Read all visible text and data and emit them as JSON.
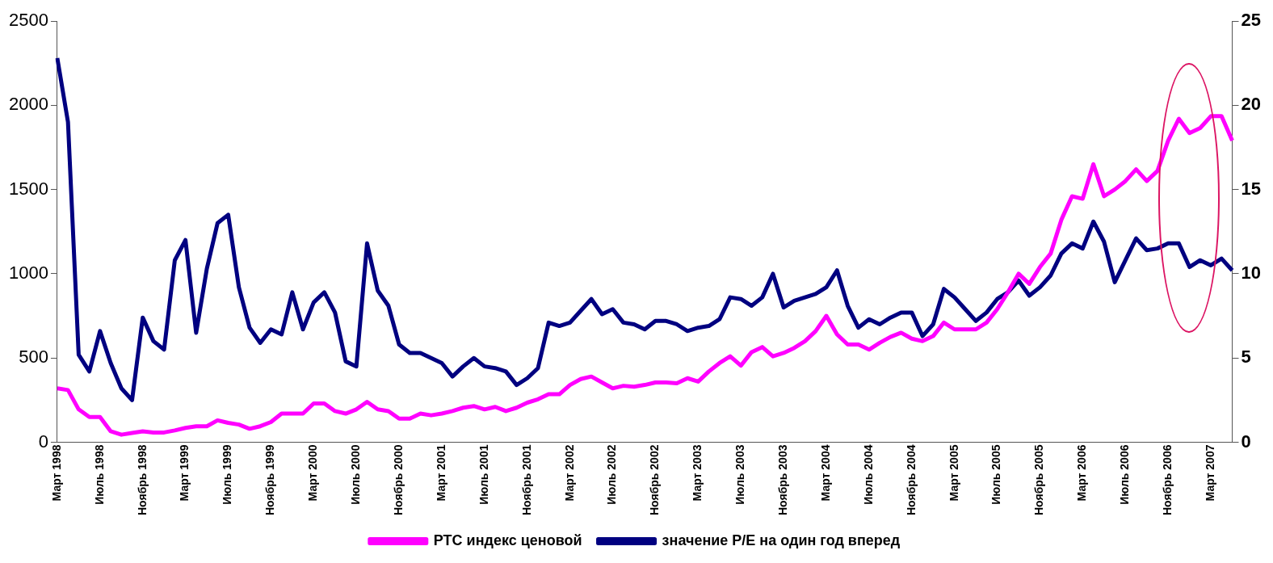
{
  "chart_data": {
    "type": "line",
    "categories": [
      "Март 1998",
      null,
      null,
      null,
      "Июль 1998",
      null,
      null,
      null,
      "Ноябрь 1998",
      null,
      null,
      null,
      "Март 1999",
      null,
      null,
      null,
      "Июль 1999",
      null,
      null,
      null,
      "Ноябрь 1999",
      null,
      null,
      null,
      "Март 2000",
      null,
      null,
      null,
      "Июль 2000",
      null,
      null,
      null,
      "Ноябрь 2000",
      null,
      null,
      null,
      "Март 2001",
      null,
      null,
      null,
      "Июль 2001",
      null,
      null,
      null,
      "Ноябрь 2001",
      null,
      null,
      null,
      "Март 2002",
      null,
      null,
      null,
      "Июль 2002",
      null,
      null,
      null,
      "Ноябрь 2002",
      null,
      null,
      null,
      "Март 2003",
      null,
      null,
      null,
      "Июль 2003",
      null,
      null,
      null,
      "Ноябрь 2003",
      null,
      null,
      null,
      "Март 2004",
      null,
      null,
      null,
      "Июль 2004",
      null,
      null,
      null,
      "Ноябрь 2004",
      null,
      null,
      null,
      "Март 2005",
      null,
      null,
      null,
      "Июль 2005",
      null,
      null,
      null,
      "Ноябрь 2005",
      null,
      null,
      null,
      "Март 2006",
      null,
      null,
      null,
      "Июль 2006",
      null,
      null,
      null,
      "Ноябрь 2006",
      null,
      null,
      null,
      "Март 2007",
      null,
      null
    ],
    "series": [
      {
        "name": "РТС индекс ценовой",
        "color": "#ff00ff",
        "values": [
          320,
          310,
          195,
          150,
          150,
          65,
          45,
          55,
          65,
          58,
          58,
          70,
          85,
          95,
          95,
          130,
          115,
          105,
          80,
          95,
          120,
          170,
          170,
          170,
          230,
          230,
          185,
          170,
          195,
          240,
          195,
          185,
          140,
          140,
          170,
          160,
          170,
          185,
          205,
          215,
          195,
          210,
          185,
          205,
          235,
          255,
          285,
          285,
          340,
          375,
          390,
          355,
          320,
          335,
          330,
          340,
          355,
          355,
          350,
          380,
          360,
          420,
          470,
          510,
          455,
          535,
          565,
          510,
          530,
          560,
          600,
          660,
          750,
          640,
          580,
          580,
          550,
          590,
          625,
          650,
          615,
          600,
          630,
          710,
          670,
          670,
          670,
          710,
          790,
          890,
          1000,
          940,
          1040,
          1120,
          1320,
          1460,
          1445,
          1650,
          1460,
          1500,
          1550,
          1620,
          1550,
          1610,
          1790,
          1920,
          1835,
          1865,
          1935,
          1935,
          1790
        ]
      },
      {
        "name": "значение P/E на один год вперед",
        "color": "#000080",
        "axis": "y2",
        "values": [
          22.8,
          19.0,
          5.2,
          4.2,
          6.6,
          4.7,
          3.2,
          2.5,
          7.4,
          6.0,
          5.5,
          10.8,
          12.0,
          6.5,
          10.3,
          13.0,
          13.5,
          9.2,
          6.8,
          5.9,
          6.7,
          6.4,
          8.9,
          6.7,
          8.3,
          8.9,
          7.7,
          4.8,
          4.5,
          11.8,
          9.0,
          8.1,
          5.8,
          5.3,
          5.3,
          5.0,
          4.7,
          3.9,
          4.5,
          5.0,
          4.5,
          4.4,
          4.2,
          3.4,
          3.8,
          4.4,
          7.1,
          6.9,
          7.1,
          7.8,
          8.5,
          7.6,
          7.9,
          7.1,
          7.0,
          6.7,
          7.2,
          7.2,
          7.0,
          6.6,
          6.8,
          6.9,
          7.3,
          8.6,
          8.5,
          8.1,
          8.6,
          10.0,
          8.0,
          8.4,
          8.6,
          8.8,
          9.2,
          10.2,
          8.1,
          6.8,
          7.3,
          7.0,
          7.4,
          7.7,
          7.7,
          6.3,
          7.0,
          9.1,
          8.6,
          7.9,
          7.2,
          7.7,
          8.5,
          8.9,
          9.6,
          8.7,
          9.2,
          9.9,
          11.2,
          11.8,
          11.5,
          13.1,
          11.9,
          9.5,
          10.8,
          12.1,
          11.4,
          11.5,
          11.8,
          11.8,
          10.4,
          10.8,
          10.5,
          10.9,
          10.2
        ]
      }
    ],
    "ylim": [
      0,
      2500
    ],
    "yticks": [
      0,
      500,
      1000,
      1500,
      2000,
      2500
    ],
    "y2lim": [
      0,
      25
    ],
    "y2ticks": [
      0,
      5,
      10,
      15,
      20,
      25
    ],
    "grid": false,
    "legend": "bottom",
    "marker": "none",
    "line_style": "solid"
  }
}
